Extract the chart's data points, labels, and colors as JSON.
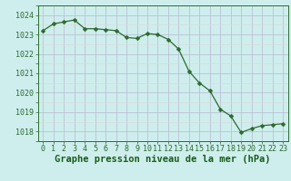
{
  "x": [
    0,
    1,
    2,
    3,
    4,
    5,
    6,
    7,
    8,
    9,
    10,
    11,
    12,
    13,
    14,
    15,
    16,
    17,
    18,
    19,
    20,
    21,
    22,
    23
  ],
  "y": [
    1023.2,
    1023.55,
    1023.65,
    1023.75,
    1023.3,
    1023.3,
    1023.25,
    1023.2,
    1022.85,
    1022.8,
    1023.05,
    1023.0,
    1022.75,
    1022.25,
    1021.1,
    1020.5,
    1020.1,
    1019.15,
    1018.8,
    1017.95,
    1018.15,
    1018.3,
    1018.35,
    1018.4
  ],
  "line_color": "#2d6a2d",
  "marker": "D",
  "marker_size": 2.5,
  "background_color": "#ceeeed",
  "grid_major_color": "#b8b8d0",
  "grid_minor_color": "#ddd8d8",
  "xlabel": "Graphe pression niveau de la mer (hPa)",
  "xlabel_fontsize": 7.5,
  "xlabel_color": "#1a5c1a",
  "ylim": [
    1017.5,
    1024.5
  ],
  "yticks": [
    1018,
    1019,
    1020,
    1021,
    1022,
    1023,
    1024
  ],
  "xticks": [
    0,
    1,
    2,
    3,
    4,
    5,
    6,
    7,
    8,
    9,
    10,
    11,
    12,
    13,
    14,
    15,
    16,
    17,
    18,
    19,
    20,
    21,
    22,
    23
  ],
  "tick_fontsize": 6.0,
  "tick_color": "#2d6a2d",
  "spine_color": "#2d6a2d"
}
